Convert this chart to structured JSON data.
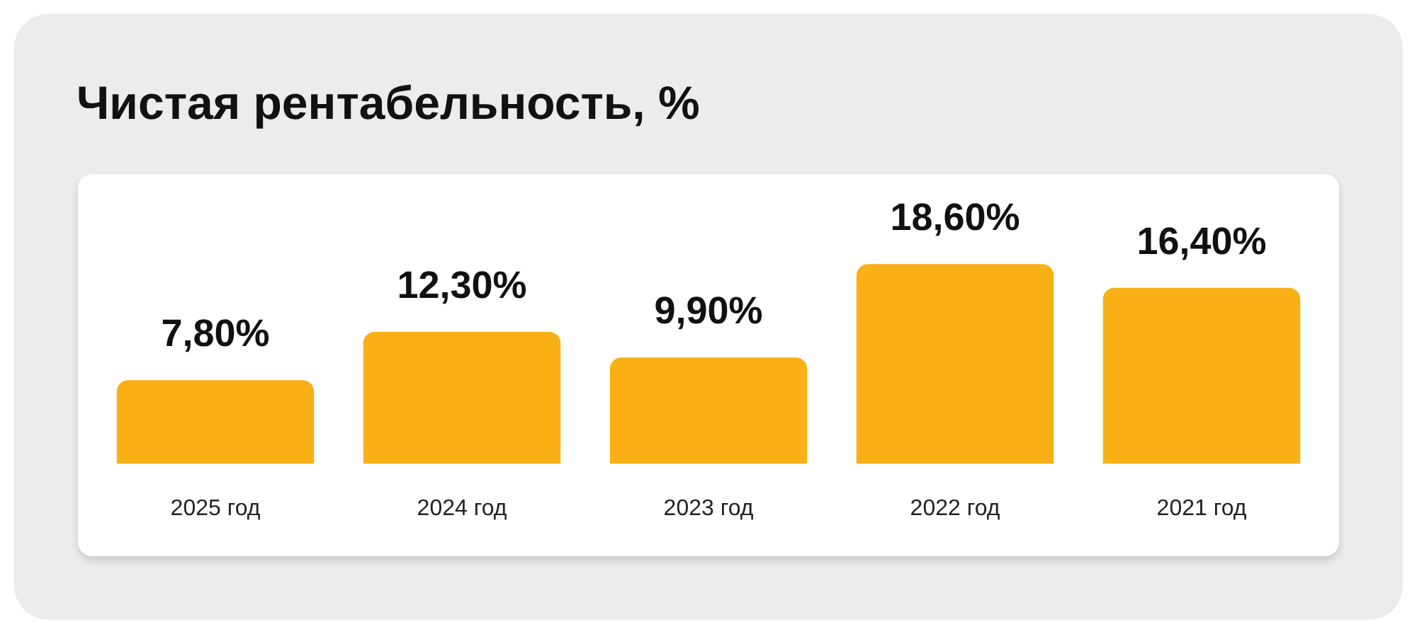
{
  "chart_data": {
    "type": "bar",
    "title": "Чистая рентабельность, %",
    "categories": [
      "2025 год",
      "2024 год",
      "2023 год",
      "2022 год",
      "2021 год"
    ],
    "values": [
      7.8,
      12.3,
      9.9,
      18.6,
      16.4
    ],
    "value_labels": [
      "7,80%",
      "12,30%",
      "9,90%",
      "18,60%",
      "16,40%"
    ],
    "color": "#f8b016",
    "grid": false,
    "legend": false
  }
}
